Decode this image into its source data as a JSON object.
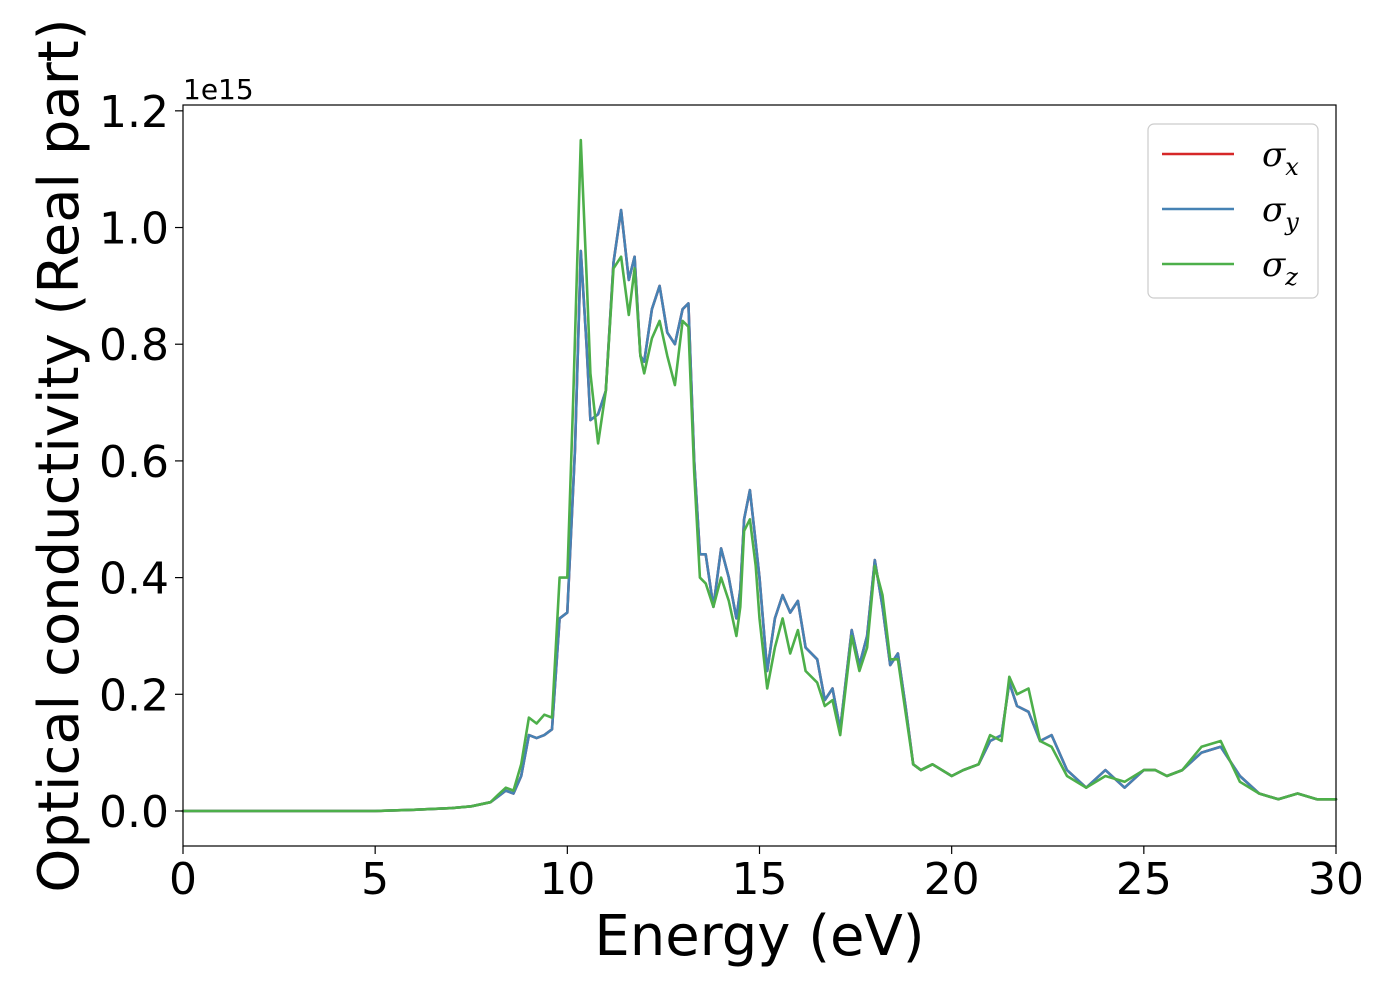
{
  "chart_data": {
    "type": "line",
    "xlabel": "Energy (eV)",
    "ylabel": "Optical conductivity (Real part)",
    "y_offset_label": "1e15",
    "xlim": [
      0,
      30
    ],
    "ylim": [
      -0.06,
      1.21
    ],
    "xticks": [
      0,
      5,
      10,
      15,
      20,
      25,
      30
    ],
    "xtick_labels": [
      "0",
      "5",
      "10",
      "15",
      "20",
      "25",
      "30"
    ],
    "yticks": [
      0.0,
      0.2,
      0.4,
      0.6,
      0.8,
      1.0,
      1.2
    ],
    "ytick_labels": [
      "0.0",
      "0.2",
      "0.4",
      "0.6",
      "0.8",
      "1.0",
      "1.2"
    ],
    "grid": false,
    "legend": "top-right",
    "series": [
      {
        "name": "σx",
        "symbol": "σ",
        "subscript": "x",
        "color": "#d62728",
        "x": [
          0,
          5,
          6,
          7,
          7.5,
          8,
          8.2,
          8.4,
          8.6,
          8.8,
          9.0,
          9.2,
          9.4,
          9.6,
          9.8,
          10.0,
          10.2,
          10.35,
          10.5,
          10.6,
          10.8,
          11.0,
          11.2,
          11.4,
          11.6,
          11.75,
          11.9,
          12.0,
          12.2,
          12.4,
          12.6,
          12.8,
          13.0,
          13.15,
          13.3,
          13.45,
          13.6,
          13.8,
          14.0,
          14.2,
          14.4,
          14.5,
          14.6,
          14.75,
          14.9,
          15.0,
          15.2,
          15.4,
          15.6,
          15.8,
          16.0,
          16.2,
          16.5,
          16.7,
          16.9,
          17.1,
          17.4,
          17.6,
          17.8,
          18.0,
          18.2,
          18.4,
          18.6,
          18.8,
          19.0,
          19.2,
          19.5,
          20.0,
          20.3,
          20.7,
          21.0,
          21.3,
          21.5,
          21.7,
          22.0,
          22.3,
          22.6,
          23.0,
          23.5,
          24.0,
          24.5,
          25.0,
          25.3,
          25.6,
          26.0,
          26.5,
          27.0,
          27.5,
          28.0,
          28.5,
          29.0,
          29.5,
          30.0
        ],
        "y": [
          0.0,
          0.0,
          0.002,
          0.005,
          0.008,
          0.015,
          0.025,
          0.035,
          0.03,
          0.06,
          0.13,
          0.125,
          0.13,
          0.14,
          0.33,
          0.34,
          0.62,
          0.96,
          0.8,
          0.67,
          0.68,
          0.72,
          0.94,
          1.03,
          0.91,
          0.95,
          0.78,
          0.77,
          0.86,
          0.9,
          0.82,
          0.8,
          0.86,
          0.87,
          0.6,
          0.44,
          0.44,
          0.35,
          0.45,
          0.4,
          0.33,
          0.38,
          0.5,
          0.55,
          0.46,
          0.4,
          0.24,
          0.33,
          0.37,
          0.34,
          0.36,
          0.28,
          0.26,
          0.19,
          0.21,
          0.14,
          0.31,
          0.25,
          0.3,
          0.43,
          0.35,
          0.25,
          0.27,
          0.18,
          0.08,
          0.07,
          0.08,
          0.06,
          0.07,
          0.08,
          0.12,
          0.13,
          0.22,
          0.18,
          0.17,
          0.12,
          0.13,
          0.07,
          0.04,
          0.07,
          0.04,
          0.07,
          0.07,
          0.06,
          0.07,
          0.1,
          0.11,
          0.06,
          0.03,
          0.02,
          0.03,
          0.02,
          0.02
        ]
      },
      {
        "name": "σy",
        "symbol": "σ",
        "subscript": "y",
        "color": "#4682b4",
        "x": [
          0,
          5,
          6,
          7,
          7.5,
          8,
          8.2,
          8.4,
          8.6,
          8.8,
          9.0,
          9.2,
          9.4,
          9.6,
          9.8,
          10.0,
          10.2,
          10.35,
          10.5,
          10.6,
          10.8,
          11.0,
          11.2,
          11.4,
          11.6,
          11.75,
          11.9,
          12.0,
          12.2,
          12.4,
          12.6,
          12.8,
          13.0,
          13.15,
          13.3,
          13.45,
          13.6,
          13.8,
          14.0,
          14.2,
          14.4,
          14.5,
          14.6,
          14.75,
          14.9,
          15.0,
          15.2,
          15.4,
          15.6,
          15.8,
          16.0,
          16.2,
          16.5,
          16.7,
          16.9,
          17.1,
          17.4,
          17.6,
          17.8,
          18.0,
          18.2,
          18.4,
          18.6,
          18.8,
          19.0,
          19.2,
          19.5,
          20.0,
          20.3,
          20.7,
          21.0,
          21.3,
          21.5,
          21.7,
          22.0,
          22.3,
          22.6,
          23.0,
          23.5,
          24.0,
          24.5,
          25.0,
          25.3,
          25.6,
          26.0,
          26.5,
          27.0,
          27.5,
          28.0,
          28.5,
          29.0,
          29.5,
          30.0
        ],
        "y": [
          0.0,
          0.0,
          0.002,
          0.005,
          0.008,
          0.015,
          0.025,
          0.035,
          0.03,
          0.06,
          0.13,
          0.125,
          0.13,
          0.14,
          0.33,
          0.34,
          0.62,
          0.96,
          0.8,
          0.67,
          0.68,
          0.72,
          0.94,
          1.03,
          0.91,
          0.95,
          0.78,
          0.77,
          0.86,
          0.9,
          0.82,
          0.8,
          0.86,
          0.87,
          0.6,
          0.44,
          0.44,
          0.35,
          0.45,
          0.4,
          0.33,
          0.38,
          0.5,
          0.55,
          0.46,
          0.4,
          0.24,
          0.33,
          0.37,
          0.34,
          0.36,
          0.28,
          0.26,
          0.19,
          0.21,
          0.14,
          0.31,
          0.25,
          0.3,
          0.43,
          0.35,
          0.25,
          0.27,
          0.18,
          0.08,
          0.07,
          0.08,
          0.06,
          0.07,
          0.08,
          0.12,
          0.13,
          0.22,
          0.18,
          0.17,
          0.12,
          0.13,
          0.07,
          0.04,
          0.07,
          0.04,
          0.07,
          0.07,
          0.06,
          0.07,
          0.1,
          0.11,
          0.06,
          0.03,
          0.02,
          0.03,
          0.02,
          0.02
        ]
      },
      {
        "name": "σz",
        "symbol": "σ",
        "subscript": "z",
        "color": "#4daf4a",
        "x": [
          0,
          5,
          6,
          7,
          7.5,
          8,
          8.2,
          8.4,
          8.6,
          8.8,
          9.0,
          9.2,
          9.4,
          9.6,
          9.8,
          10.0,
          10.15,
          10.35,
          10.5,
          10.6,
          10.8,
          11.0,
          11.2,
          11.4,
          11.6,
          11.75,
          11.9,
          12.0,
          12.2,
          12.4,
          12.6,
          12.8,
          13.0,
          13.15,
          13.3,
          13.45,
          13.6,
          13.8,
          14.0,
          14.2,
          14.4,
          14.5,
          14.6,
          14.75,
          14.9,
          15.0,
          15.2,
          15.4,
          15.6,
          15.8,
          16.0,
          16.2,
          16.5,
          16.7,
          16.9,
          17.1,
          17.4,
          17.6,
          17.8,
          18.0,
          18.2,
          18.4,
          18.6,
          18.8,
          19.0,
          19.2,
          19.5,
          20.0,
          20.3,
          20.7,
          21.0,
          21.3,
          21.5,
          21.7,
          22.0,
          22.3,
          22.6,
          23.0,
          23.5,
          24.0,
          24.5,
          25.0,
          25.3,
          25.6,
          26.0,
          26.5,
          27.0,
          27.5,
          28.0,
          28.5,
          29.0,
          29.5,
          30.0
        ],
        "y": [
          0.0,
          0.0,
          0.002,
          0.005,
          0.008,
          0.015,
          0.028,
          0.04,
          0.035,
          0.08,
          0.16,
          0.15,
          0.165,
          0.16,
          0.4,
          0.4,
          0.7,
          1.15,
          0.92,
          0.75,
          0.63,
          0.72,
          0.93,
          0.95,
          0.85,
          0.93,
          0.78,
          0.75,
          0.81,
          0.84,
          0.78,
          0.73,
          0.84,
          0.83,
          0.58,
          0.4,
          0.39,
          0.35,
          0.4,
          0.36,
          0.3,
          0.35,
          0.48,
          0.5,
          0.42,
          0.33,
          0.21,
          0.28,
          0.33,
          0.27,
          0.31,
          0.24,
          0.22,
          0.18,
          0.19,
          0.13,
          0.3,
          0.24,
          0.28,
          0.42,
          0.37,
          0.26,
          0.26,
          0.17,
          0.08,
          0.07,
          0.08,
          0.06,
          0.07,
          0.08,
          0.13,
          0.12,
          0.23,
          0.2,
          0.21,
          0.12,
          0.11,
          0.06,
          0.04,
          0.06,
          0.05,
          0.07,
          0.07,
          0.06,
          0.07,
          0.11,
          0.12,
          0.05,
          0.03,
          0.02,
          0.03,
          0.02,
          0.02
        ]
      }
    ]
  }
}
